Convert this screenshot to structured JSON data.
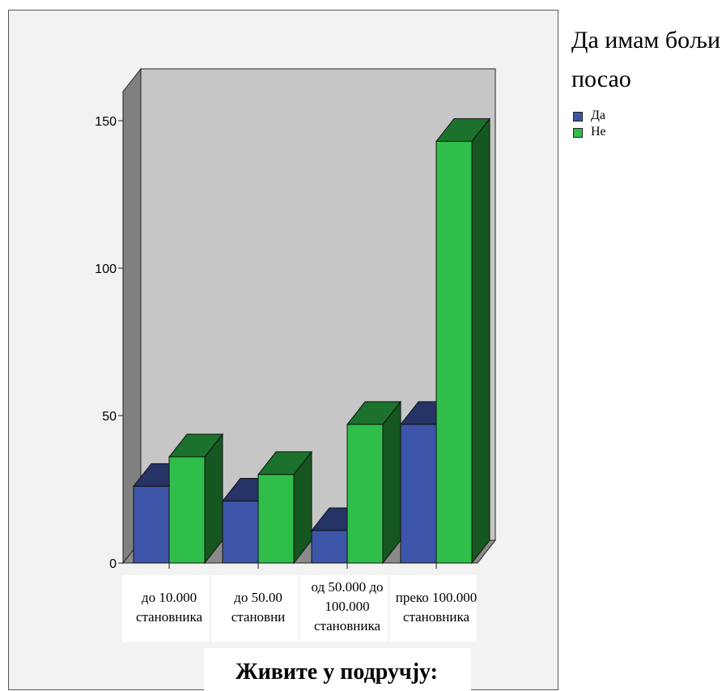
{
  "chart_data": {
    "type": "bar",
    "categories": [
      [
        "до 10.000",
        "становника"
      ],
      [
        "до 50.00",
        "становни"
      ],
      [
        "од 50.000 до",
        "100.000",
        "становника"
      ],
      [
        "преко 100.000",
        "становника"
      ]
    ],
    "series": [
      {
        "name": "Да",
        "color": "#3d55a8",
        "values": [
          26,
          21,
          11,
          47
        ]
      },
      {
        "name": "Не",
        "color": "#2fbe4a",
        "values": [
          36,
          30,
          47,
          143
        ]
      }
    ],
    "xlabel": "Живите у подручју:",
    "ylabel": "",
    "yticks": [
      "0",
      "50",
      "100",
      "150"
    ],
    "ylim": [
      0,
      150
    ],
    "legend": {
      "title": "Да имам бољи посао",
      "placement": "top-right"
    },
    "style": "3d-bars",
    "grid": false
  }
}
